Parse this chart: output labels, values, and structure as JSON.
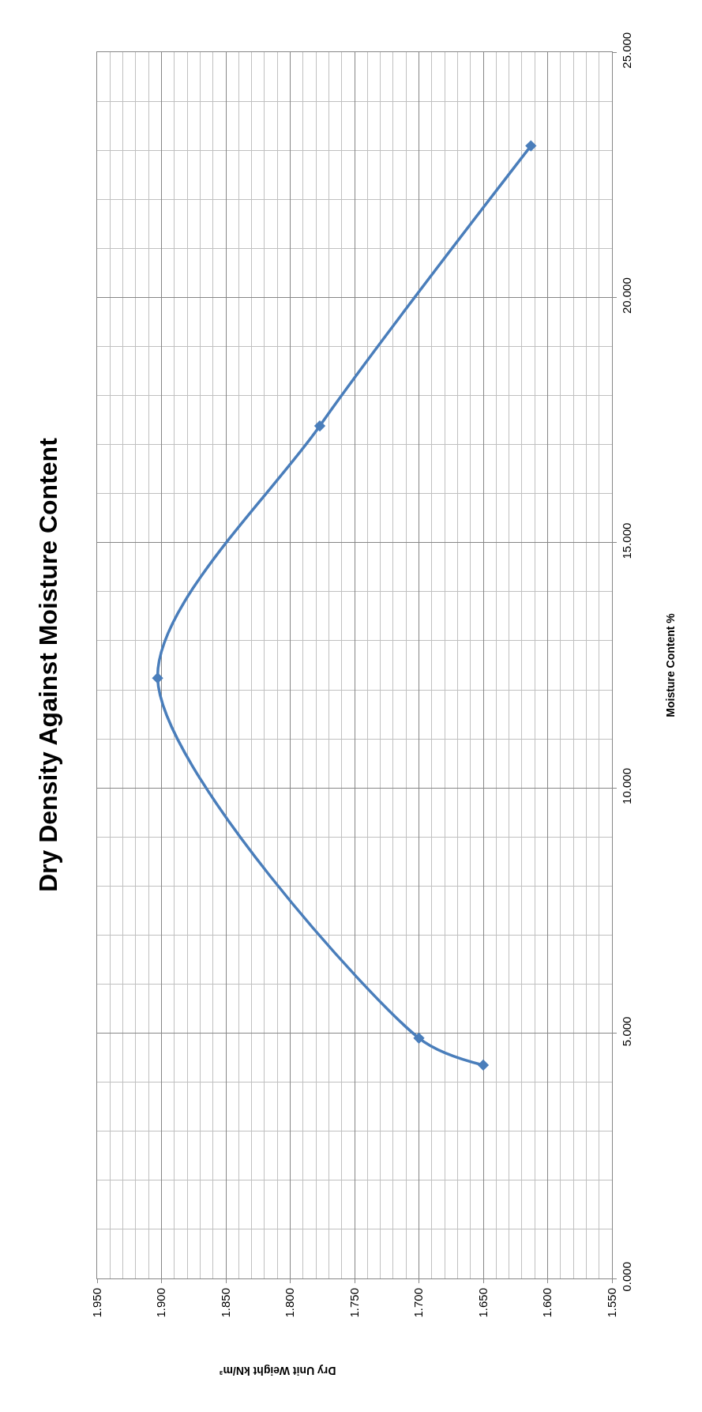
{
  "chart_data": {
    "type": "line",
    "title": "Dry Density Against Moisture Content",
    "xlabel": "Dry Unit Weight kN/m³",
    "ylabel": "Moisture Content %",
    "x": [
      1.65,
      1.7,
      1.903,
      1.777,
      1.613
    ],
    "series": [
      {
        "color": "#4a7ebb",
        "values": [
          4.35,
          4.9,
          12.24,
          17.38,
          23.09
        ]
      }
    ],
    "xlim": [
      1.95,
      1.55
    ],
    "xticks": [
      {
        "value": 1.55,
        "label": "1.550"
      },
      {
        "value": 1.6,
        "label": "1.600"
      },
      {
        "value": 1.65,
        "label": "1.650"
      },
      {
        "value": 1.7,
        "label": "1.700"
      },
      {
        "value": 1.75,
        "label": "1.750"
      },
      {
        "value": 1.8,
        "label": "1.800"
      },
      {
        "value": 1.85,
        "label": "1.850"
      },
      {
        "value": 1.9,
        "label": "1.900"
      },
      {
        "value": 1.95,
        "label": "1.950"
      }
    ],
    "ylim": [
      0,
      25
    ],
    "yticks": [
      {
        "value": 0,
        "label": "0.000"
      },
      {
        "value": 5,
        "label": "5.000"
      },
      {
        "value": 10,
        "label": "10.000"
      },
      {
        "value": 15,
        "label": "15.000"
      },
      {
        "value": 20,
        "label": "20.000"
      },
      {
        "value": 25,
        "label": "25.000"
      }
    ],
    "grid": true,
    "marker": "diamond",
    "line_style": "solid"
  }
}
